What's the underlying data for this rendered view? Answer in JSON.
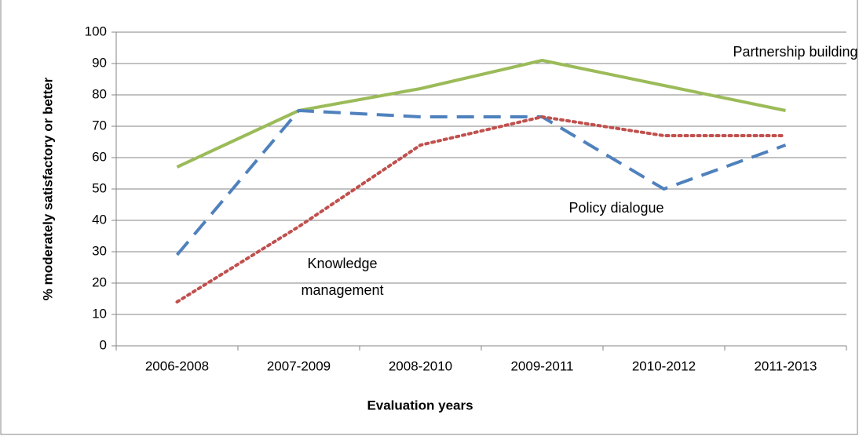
{
  "chart_data": {
    "type": "line",
    "xlabel": "Evaluation years",
    "ylabel": "% moderately satisfactory or better",
    "categories": [
      "2006-2008",
      "2007-2009",
      "2008-2010",
      "2009-2011",
      "2010-2012",
      "2011-2013"
    ],
    "series": [
      {
        "name": "Partnership building",
        "color": "#9bbb59",
        "line_style": "solid",
        "values": [
          57,
          75,
          82,
          91,
          83,
          75
        ]
      },
      {
        "name": "Policy dialogue",
        "color": "#4f81bd",
        "line_style": "dashed",
        "values": [
          29,
          75,
          73,
          73,
          50,
          64
        ]
      },
      {
        "name": "Knowledge management",
        "color": "#c0504d",
        "line_style": "dotted",
        "values": [
          14,
          38,
          64,
          73,
          67,
          67
        ]
      }
    ],
    "ylim": [
      0,
      100
    ],
    "yticks": [
      0,
      10,
      20,
      30,
      40,
      50,
      60,
      70,
      80,
      90,
      100
    ],
    "grid": true,
    "legend": false
  }
}
